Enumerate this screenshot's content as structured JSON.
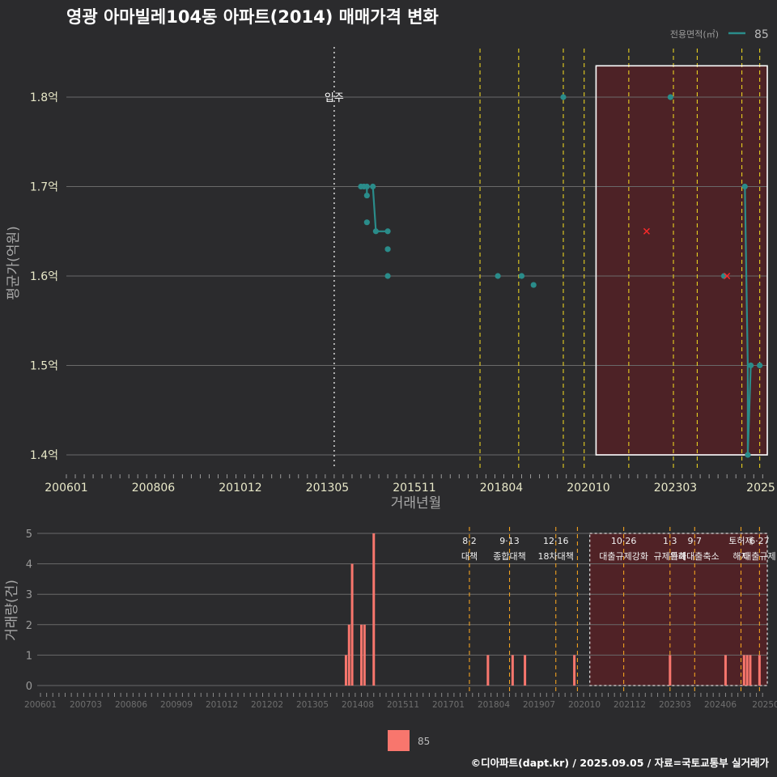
{
  "title": "영광 아마빌레104동 아파트(2014) 매매가격 변화",
  "legend_top": {
    "title": "전용면적(㎡)",
    "label": "85"
  },
  "legend_bottom": {
    "label": "85"
  },
  "footer": "©디아파트(dapt.kr) / 2025.09.05 / 자료=국토교통부 실거래가",
  "colors": {
    "line": "#2a8c8a",
    "bar": "#f8766d",
    "vline": "#e8d020",
    "vline_bottom": "#f0a020",
    "highlight": "#5a2024",
    "x_mark": "#ff2a2a"
  },
  "chart_data": [
    {
      "type": "line",
      "title": "영광 아마빌레104동 아파트(2014) 매매가격 변화",
      "xlabel": "거래년월",
      "ylabel": "평균가(억원)",
      "xlim": [
        "2006-01",
        "2025-08"
      ],
      "ylim": [
        1.37,
        1.86
      ],
      "yticks": [
        1.4,
        1.5,
        1.6,
        1.7,
        1.8
      ],
      "ytick_labels": [
        "1.4억",
        "1.5억",
        "1.6억",
        "1.7억",
        "1.8억"
      ],
      "xtick_labels": [
        "200601",
        "200806",
        "201012",
        "201305",
        "201511",
        "201804",
        "202010",
        "202303",
        "2025"
      ],
      "grid": true,
      "legend_position": "top-right",
      "series": [
        {
          "name": "85",
          "points": [
            {
              "x": "2014-04",
              "y": 1.7
            },
            {
              "x": "2014-05",
              "y": 1.7
            },
            {
              "x": "2014-06",
              "y": 1.7
            },
            {
              "x": "2014-06",
              "y": 1.69
            },
            {
              "x": "2014-06",
              "y": 1.66
            },
            {
              "x": "2014-08",
              "y": 1.7
            },
            {
              "x": "2014-09",
              "y": 1.65
            },
            {
              "x": "2015-01",
              "y": 1.65
            },
            {
              "x": "2015-01",
              "y": 1.63
            },
            {
              "x": "2015-01",
              "y": 1.6
            },
            {
              "x": "2018-02",
              "y": 1.6
            },
            {
              "x": "2018-10",
              "y": 1.6
            },
            {
              "x": "2019-02",
              "y": 1.59
            },
            {
              "x": "2019-12",
              "y": 1.8
            },
            {
              "x": "2022-12",
              "y": 1.8
            },
            {
              "x": "2024-06",
              "y": 1.6
            },
            {
              "x": "2025-01",
              "y": 1.7
            },
            {
              "x": "2025-02",
              "y": 1.4
            },
            {
              "x": "2025-03",
              "y": 1.5
            },
            {
              "x": "2025-06",
              "y": 1.5
            }
          ],
          "line_segments": [
            [
              [
                "2014-04",
                1.7
              ],
              [
                "2014-06",
                1.7
              ],
              [
                "2014-06",
                1.69
              ]
            ],
            [
              [
                "2014-08",
                1.7
              ],
              [
                "2014-09",
                1.65
              ],
              [
                "2015-01",
                1.65
              ]
            ],
            [
              [
                "2025-01",
                1.7
              ],
              [
                "2025-02",
                1.5
              ],
              [
                "2025-02",
                1.4
              ],
              [
                "2025-03",
                1.5
              ]
            ]
          ]
        }
      ],
      "annotations": [
        {
          "x": "2013-07",
          "label": "입주",
          "style": "dotted"
        }
      ],
      "event_lines": [
        "2017-08",
        "2018-09",
        "2019-12",
        "2020-07",
        "2021-10",
        "2023-01",
        "2023-09",
        "2024-12",
        "2025-06"
      ],
      "highlight_range": {
        "x": [
          "2020-11",
          "2025-08"
        ],
        "y": [
          1.4,
          1.835
        ]
      },
      "x_mark": {
        "x": "2022-04",
        "y": 1.65
      },
      "x_mark_2": {
        "x": "2024-07",
        "y": 1.6
      }
    },
    {
      "type": "bar",
      "ylabel": "거래량(건)",
      "ylim": [
        0,
        5
      ],
      "yticks": [
        0,
        1,
        2,
        3,
        4,
        5
      ],
      "ytick_labels": [
        "0",
        "1",
        "2",
        "3",
        "4",
        "5"
      ],
      "xtick_labels": [
        "200601",
        "200703",
        "200806",
        "200909",
        "201012",
        "201202",
        "201305",
        "201408",
        "201511",
        "201701",
        "201804",
        "201907",
        "202010",
        "202112",
        "202303",
        "202406",
        "20250"
      ],
      "series": [
        {
          "name": "85",
          "bars": [
            {
              "x": "2014-04",
              "y": 1
            },
            {
              "x": "2014-05",
              "y": 2
            },
            {
              "x": "2014-06",
              "y": 4
            },
            {
              "x": "2014-09",
              "y": 2
            },
            {
              "x": "2014-10",
              "y": 2
            },
            {
              "x": "2015-01",
              "y": 5
            },
            {
              "x": "2018-02",
              "y": 1
            },
            {
              "x": "2018-10",
              "y": 1
            },
            {
              "x": "2019-02",
              "y": 1
            },
            {
              "x": "2020-06",
              "y": 1
            },
            {
              "x": "2023-01",
              "y": 1
            },
            {
              "x": "2024-07",
              "y": 1
            },
            {
              "x": "2025-01",
              "y": 1
            },
            {
              "x": "2025-02",
              "y": 1
            },
            {
              "x": "2025-03",
              "y": 1
            },
            {
              "x": "2025-06",
              "y": 1
            }
          ]
        }
      ],
      "event_lines": [
        {
          "x": "2017-08",
          "label": "8·2 대책"
        },
        {
          "x": "2018-09",
          "label": "9·13 종합대책"
        },
        {
          "x": "2019-12",
          "label": "12·16 18차대책"
        },
        {
          "x": "2020-07",
          "label": ""
        },
        {
          "x": "2021-10",
          "label": "10·26 대출규제강화"
        },
        {
          "x": "2023-01",
          "label": "1·3 규제완화"
        },
        {
          "x": "2023-09",
          "label": "9·7 특례대출축소"
        },
        {
          "x": "2024-12",
          "label": "토허제 해제"
        },
        {
          "x": "2025-06",
          "label": "6·27 대출규제"
        }
      ],
      "highlight_range": {
        "x": [
          "2020-11",
          "2025-08"
        ]
      }
    }
  ]
}
